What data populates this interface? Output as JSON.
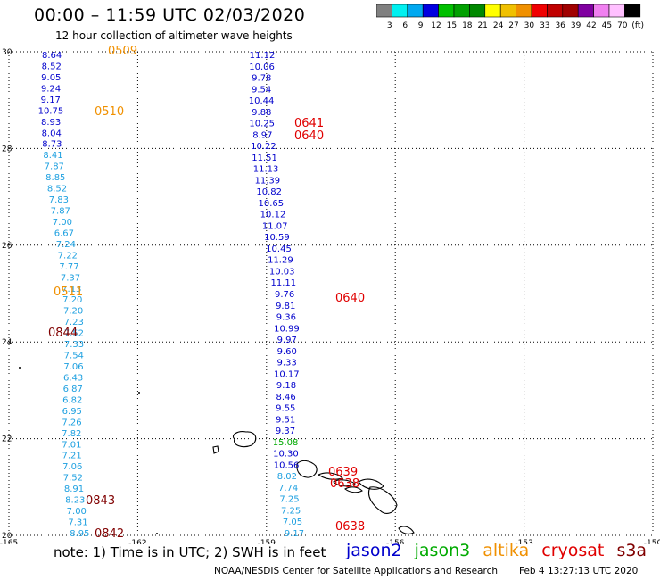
{
  "header": {
    "title": "00:00  –  11:59 UTC 02/03/2020",
    "subtitle": "12 hour collection of altimeter wave heights"
  },
  "legend": {
    "colors": [
      "#808080",
      "#00f0f0",
      "#00a8f0",
      "#0000e0",
      "#00c000",
      "#00a000",
      "#008800",
      "#ffff00",
      "#f0c000",
      "#f09000",
      "#f00000",
      "#c00000",
      "#a00000",
      "#8000a0",
      "#f080f0",
      "#ffc0ff",
      "#000000"
    ],
    "labels": [
      "3",
      "6",
      "9",
      "12",
      "15",
      "18",
      "21",
      "24",
      "27",
      "30",
      "33",
      "36",
      "39",
      "42",
      "45",
      "70",
      "(ft)"
    ]
  },
  "map": {
    "lon_ticks": [
      "-165",
      "-162",
      "-159",
      "-156",
      "-153",
      "-150"
    ],
    "lat_ticks": [
      "30",
      "28",
      "26",
      "24",
      "22",
      "20"
    ],
    "track_colors": {
      "jason2": "#0000cc",
      "jason3": "#00aa00",
      "altika": "#f09000",
      "cryosat": "#e00000",
      "s3a": "#800000",
      "s3a_light": "#1ea0e0"
    },
    "tracks": [
      {
        "id": "track-west",
        "color": "s3a_light",
        "lon_start": -164.0,
        "lon_end": -163.3,
        "values": [
          "8.64",
          "8.52",
          "9.05",
          "9.24",
          "9.17",
          "10.75",
          "8.93",
          "8.04",
          "8.73",
          "8.41",
          "7.87",
          "8.85",
          "8.52",
          "7.83",
          "7.87",
          "7.00",
          "6.67",
          "7.24",
          "7.22",
          "7.77",
          "7.37",
          "7.13",
          "7.20",
          "7.20",
          "7.23",
          "7.52",
          "7.33",
          "7.54",
          "7.06",
          "6.43",
          "6.87",
          "6.82",
          "6.95",
          "7.26",
          "7.82",
          "7.01",
          "7.21",
          "7.06",
          "7.52",
          "8.91",
          "8.23",
          "7.00",
          "7.31",
          "8.95"
        ]
      },
      {
        "id": "track-central",
        "color": "jason2",
        "lon_start": -159.1,
        "lon_end": -158.3,
        "values": [
          "11.12",
          "10.06",
          "9.78",
          "9.54",
          "10.44",
          "9.88",
          "10.25",
          "8.97",
          "10.22",
          "11.51",
          "11.13",
          "11.39",
          "10.82",
          "10.65",
          "10.12",
          "11.07",
          "10.59",
          "10.45",
          "11.29",
          "10.03",
          "11.11",
          "9.76",
          "9.81",
          "9.36",
          "10.99",
          "9.97",
          "9.60",
          "9.33",
          "10.17",
          "9.18",
          "8.46",
          "9.55",
          "9.51",
          "9.37",
          "15.08",
          "10.30",
          "10.56",
          "8.02",
          "7.74",
          "7.25",
          "7.25",
          "7.05",
          "9.17"
        ]
      }
    ],
    "pass_labels": [
      {
        "text": "0509",
        "color": "altika"
      },
      {
        "text": "0510",
        "color": "altika"
      },
      {
        "text": "0511",
        "color": "altika"
      },
      {
        "text": "0844",
        "color": "s3a"
      },
      {
        "text": "0843",
        "color": "s3a"
      },
      {
        "text": "0842",
        "color": "s3a"
      },
      {
        "text": "0641",
        "color": "cryosat"
      },
      {
        "text": "0640",
        "color": "cryosat"
      },
      {
        "text": "0640",
        "color": "cryosat"
      },
      {
        "text": "0639",
        "color": "cryosat"
      },
      {
        "text": "0638",
        "color": "cryosat"
      },
      {
        "text": "0638",
        "color": "cryosat"
      }
    ]
  },
  "note": "note:  1) Time is in UTC;  2) SWH is in feet",
  "satellites": [
    {
      "name": "jason2",
      "color": "#0000cc"
    },
    {
      "name": "jason3",
      "color": "#00aa00"
    },
    {
      "name": "altika",
      "color": "#f09000"
    },
    {
      "name": "cryosat",
      "color": "#e00000"
    },
    {
      "name": "s3a",
      "color": "#800000"
    }
  ],
  "footer": {
    "agency": "NOAA/NESDIS Center for Satellite Applications and Research",
    "timestamp": "Feb  4 13:27:13 UTC 2020"
  }
}
